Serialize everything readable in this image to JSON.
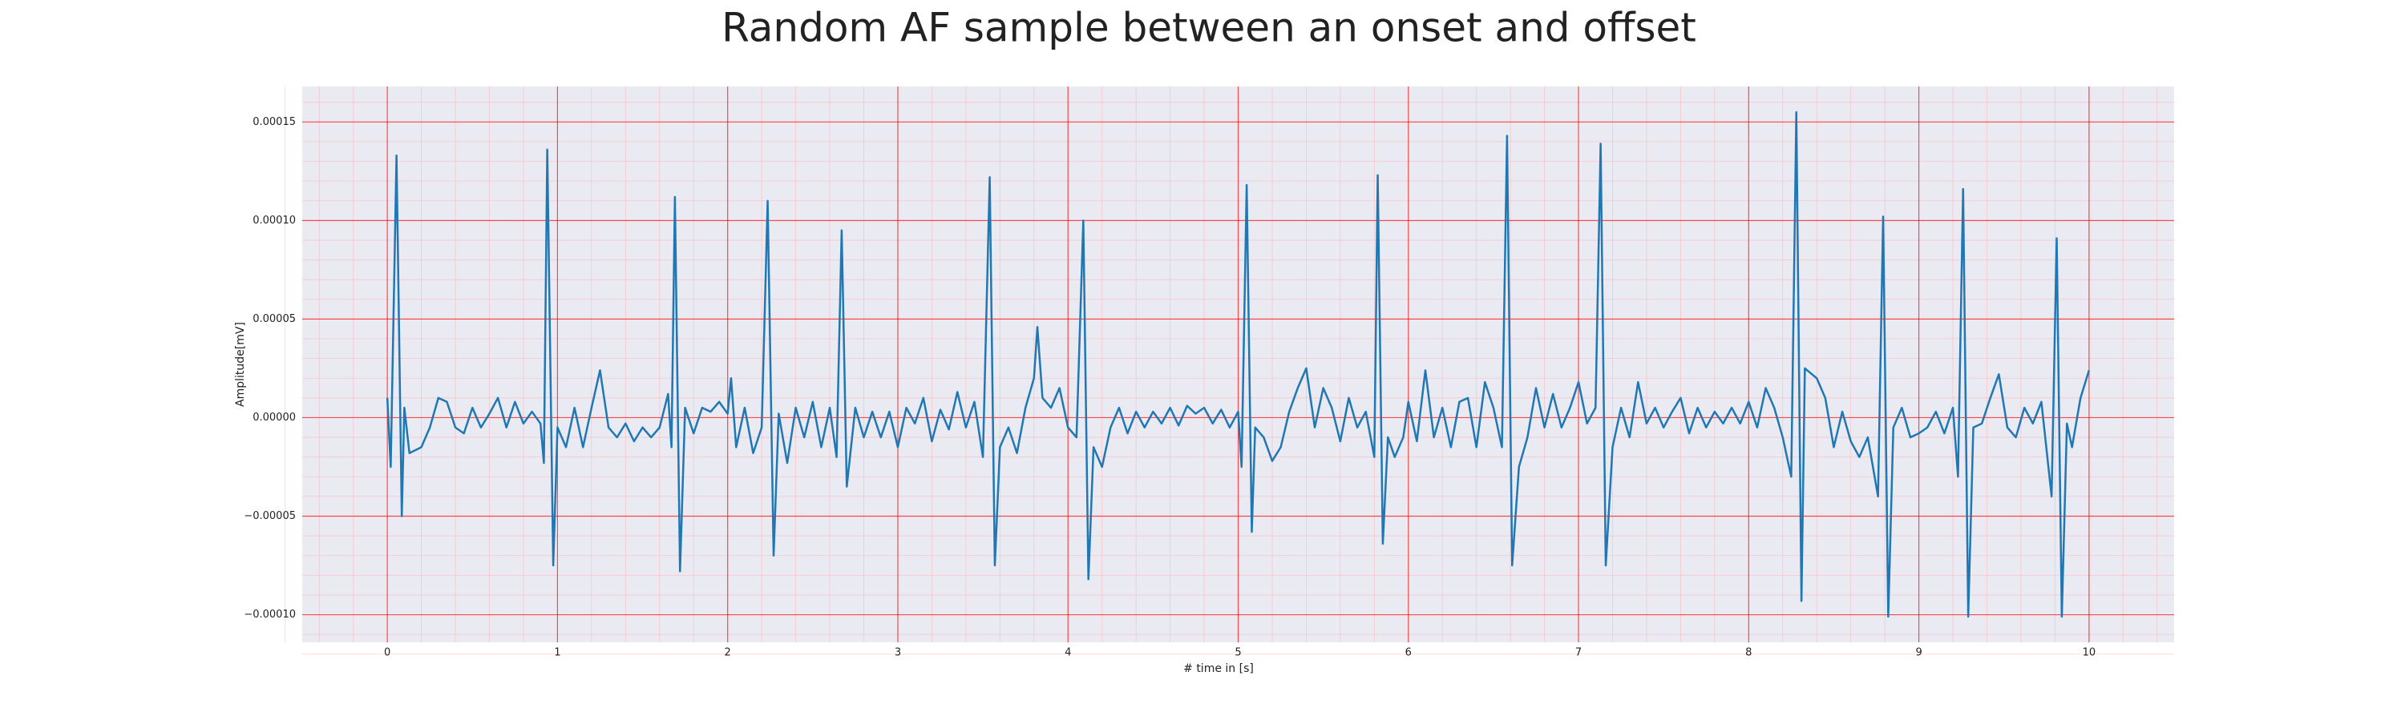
{
  "chart_data": {
    "type": "line",
    "title": "Random AF sample between an onset and offset",
    "xlabel": "# time in [s]",
    "ylabel": "Amplitude[mV]",
    "color": "#1f77b4",
    "grid": true,
    "minor_grid": true,
    "xlim": [
      -0.5,
      10.5
    ],
    "ylim": [
      -0.000114,
      0.000168
    ],
    "xticks": [
      0,
      1,
      2,
      3,
      4,
      5,
      6,
      7,
      8,
      9,
      10
    ],
    "yticks": [
      {
        "value": -0.0001,
        "label": "−0.00010"
      },
      {
        "value": -5e-05,
        "label": "−0.00005"
      },
      {
        "value": 0,
        "label": "0.00000"
      },
      {
        "value": 5e-05,
        "label": "0.00005"
      },
      {
        "value": 0.0001,
        "label": "0.00010"
      },
      {
        "value": 0.00015,
        "label": "0.00015"
      }
    ],
    "x": [
      0,
      0.02,
      0.054,
      0.085,
      0.1,
      0.13,
      0.2,
      0.25,
      0.3,
      0.35,
      0.4,
      0.45,
      0.5,
      0.55,
      0.6,
      0.65,
      0.7,
      0.75,
      0.8,
      0.85,
      0.9,
      0.92,
      0.94,
      0.975,
      1.0,
      1.05,
      1.1,
      1.15,
      1.2,
      1.25,
      1.3,
      1.35,
      1.4,
      1.45,
      1.5,
      1.55,
      1.6,
      1.65,
      1.67,
      1.69,
      1.72,
      1.75,
      1.8,
      1.85,
      1.9,
      1.95,
      2.0,
      2.02,
      2.05,
      2.1,
      2.15,
      2.2,
      2.235,
      2.27,
      2.3,
      2.35,
      2.4,
      2.45,
      2.5,
      2.55,
      2.6,
      2.64,
      2.67,
      2.7,
      2.75,
      2.8,
      2.85,
      2.9,
      2.95,
      3.0,
      3.05,
      3.1,
      3.15,
      3.2,
      3.25,
      3.3,
      3.35,
      3.4,
      3.45,
      3.5,
      3.54,
      3.57,
      3.6,
      3.65,
      3.7,
      3.75,
      3.8,
      3.82,
      3.85,
      3.9,
      3.95,
      4.0,
      4.05,
      4.09,
      4.12,
      4.15,
      4.2,
      4.25,
      4.3,
      4.35,
      4.4,
      4.45,
      4.5,
      4.55,
      4.6,
      4.65,
      4.7,
      4.75,
      4.8,
      4.85,
      4.9,
      4.95,
      5.0,
      5.02,
      5.05,
      5.08,
      5.1,
      5.15,
      5.2,
      5.25,
      5.3,
      5.35,
      5.4,
      5.45,
      5.5,
      5.55,
      5.6,
      5.65,
      5.7,
      5.75,
      5.8,
      5.82,
      5.85,
      5.88,
      5.92,
      5.97,
      6.0,
      6.05,
      6.1,
      6.15,
      6.2,
      6.25,
      6.3,
      6.35,
      6.4,
      6.45,
      6.5,
      6.55,
      6.58,
      6.61,
      6.65,
      6.7,
      6.75,
      6.8,
      6.85,
      6.9,
      6.95,
      7.0,
      7.05,
      7.1,
      7.13,
      7.16,
      7.2,
      7.25,
      7.3,
      7.35,
      7.4,
      7.45,
      7.5,
      7.55,
      7.6,
      7.65,
      7.7,
      7.75,
      7.8,
      7.85,
      7.9,
      7.95,
      8.0,
      8.05,
      8.1,
      8.15,
      8.2,
      8.25,
      8.28,
      8.31,
      8.33,
      8.4,
      8.45,
      8.5,
      8.55,
      8.6,
      8.65,
      8.7,
      8.76,
      8.79,
      8.82,
      8.85,
      8.9,
      8.95,
      9.0,
      9.05,
      9.1,
      9.15,
      9.2,
      9.23,
      9.26,
      9.29,
      9.32,
      9.37,
      9.42,
      9.47,
      9.52,
      9.57,
      9.62,
      9.67,
      9.72,
      9.78,
      9.81,
      9.84,
      9.87,
      9.9,
      9.95,
      10.0
    ],
    "values": [
      1e-05,
      -2.5e-05,
      0.000133,
      -5e-05,
      5e-06,
      -1.8e-05,
      -1.5e-05,
      -5e-06,
      1e-05,
      8e-06,
      -5e-06,
      -8e-06,
      5e-06,
      -5e-06,
      2e-06,
      1e-05,
      -5e-06,
      8e-06,
      -3e-06,
      3e-06,
      -3e-06,
      -2.3e-05,
      0.000136,
      -7.5e-05,
      -5e-06,
      -1.5e-05,
      5e-06,
      -1.5e-05,
      5e-06,
      2.4e-05,
      -5e-06,
      -1e-05,
      -3e-06,
      -1.2e-05,
      -5e-06,
      -1e-05,
      -5e-06,
      1.2e-05,
      -1.5e-05,
      0.000112,
      -7.8e-05,
      5e-06,
      -8e-06,
      5e-06,
      3e-06,
      8e-06,
      2e-06,
      2e-05,
      -1.5e-05,
      5e-06,
      -1.8e-05,
      -5e-06,
      0.00011,
      -7e-05,
      2e-06,
      -2.3e-05,
      5e-06,
      -1e-05,
      8e-06,
      -1.5e-05,
      5e-06,
      -2e-05,
      9.5e-05,
      -3.5e-05,
      5e-06,
      -1e-05,
      3e-06,
      -1e-05,
      3e-06,
      -1.5e-05,
      5e-06,
      -3e-06,
      1e-05,
      -1.2e-05,
      4e-06,
      -6e-06,
      1.3e-05,
      -5e-06,
      8e-06,
      -2e-05,
      0.000122,
      -7.5e-05,
      -1.5e-05,
      -5e-06,
      -1.8e-05,
      5e-06,
      2e-05,
      4.6e-05,
      1e-05,
      5e-06,
      1.5e-05,
      -5e-06,
      -1e-05,
      0.0001,
      -8.2e-05,
      -1.5e-05,
      -2.5e-05,
      -5e-06,
      5e-06,
      -8e-06,
      3e-06,
      -5e-06,
      3e-06,
      -3e-06,
      5e-06,
      -4e-06,
      6e-06,
      2e-06,
      5e-06,
      -3e-06,
      4e-06,
      -5e-06,
      3e-06,
      -2.5e-05,
      0.000118,
      -5.8e-05,
      -5e-06,
      -1e-05,
      -2.2e-05,
      -1.5e-05,
      3e-06,
      1.5e-05,
      2.5e-05,
      -5e-06,
      1.5e-05,
      5e-06,
      -1.2e-05,
      1e-05,
      -5e-06,
      3e-06,
      -2e-05,
      0.000123,
      -6.4e-05,
      -1e-05,
      -2e-05,
      -1e-05,
      8e-06,
      -1.2e-05,
      2.4e-05,
      -1e-05,
      5e-06,
      -1.5e-05,
      8e-06,
      1e-05,
      -1.5e-05,
      1.8e-05,
      5e-06,
      -1.5e-05,
      0.000143,
      -7.5e-05,
      -2.5e-05,
      -1e-05,
      1.5e-05,
      -5e-06,
      1.2e-05,
      -5e-06,
      5e-06,
      1.8e-05,
      -3e-06,
      5e-06,
      0.000139,
      -7.5e-05,
      -1.5e-05,
      5e-06,
      -1e-05,
      1.8e-05,
      -3e-06,
      5e-06,
      -5e-06,
      3e-06,
      1e-05,
      -8e-06,
      5e-06,
      -5e-06,
      3e-06,
      -3e-06,
      5e-06,
      -3e-06,
      8e-06,
      -5e-06,
      1.5e-05,
      5e-06,
      -1e-05,
      -3e-05,
      0.000155,
      -9.3e-05,
      2.5e-05,
      2e-05,
      1e-05,
      -1.5e-05,
      3e-06,
      -1.2e-05,
      -2e-05,
      -1e-05,
      -4e-05,
      0.000102,
      -0.000101,
      -5e-06,
      5e-06,
      -1e-05,
      -8e-06,
      -5e-06,
      3e-06,
      -8e-06,
      5e-06,
      -3e-05,
      0.000116,
      -0.000101,
      -5e-06,
      -3e-06,
      1e-05,
      2.2e-05,
      -5e-06,
      -1e-05,
      5e-06,
      -3e-06,
      8e-06,
      -4e-05,
      9.1e-05,
      -0.000101,
      -3e-06,
      -1.5e-05,
      1e-05,
      2.4e-05
    ]
  }
}
